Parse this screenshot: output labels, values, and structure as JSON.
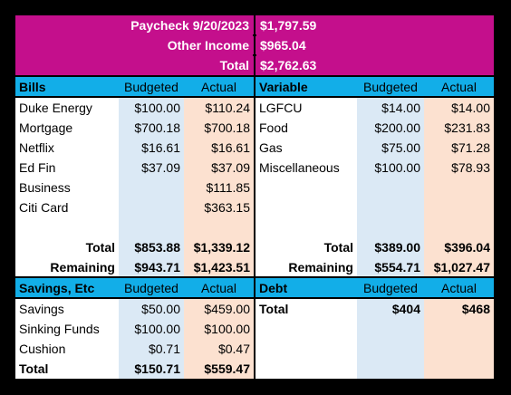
{
  "header": {
    "paycheck_label": "Paycheck  9/20/2023",
    "paycheck_value": "$1,797.59",
    "other_income_label": "Other Income",
    "other_income_value": "$965.04",
    "total_label": "Total",
    "total_value": "$2,762.63"
  },
  "bills": {
    "title": "Bills",
    "col_budgeted": "Budgeted",
    "col_actual": "Actual",
    "rows": [
      {
        "name": "Duke Energy",
        "budgeted": "$100.00",
        "actual": "$110.24"
      },
      {
        "name": "Mortgage",
        "budgeted": "$700.18",
        "actual": "$700.18"
      },
      {
        "name": "Netflix",
        "budgeted": "$16.61",
        "actual": "$16.61"
      },
      {
        "name": "Ed Fin",
        "budgeted": "$37.09",
        "actual": "$37.09"
      },
      {
        "name": "Business",
        "budgeted": "",
        "actual": "$111.85"
      },
      {
        "name": "Citi Card",
        "budgeted": "",
        "actual": "$363.15"
      }
    ],
    "total_label": "Total",
    "total_budgeted": "$853.88",
    "total_actual": "$1,339.12",
    "remaining_label": "Remaining",
    "remaining_budgeted": "$943.71",
    "remaining_actual": "$1,423.51"
  },
  "variable": {
    "title": "Variable",
    "col_budgeted": "Budgeted",
    "col_actual": "Actual",
    "rows": [
      {
        "name": "LGFCU",
        "budgeted": "$14.00",
        "actual": "$14.00"
      },
      {
        "name": "Food",
        "budgeted": "$200.00",
        "actual": "$231.83"
      },
      {
        "name": "Gas",
        "budgeted": "$75.00",
        "actual": "$71.28"
      },
      {
        "name": "Miscellaneous",
        "budgeted": "$100.00",
        "actual": "$78.93"
      }
    ],
    "total_label": "Total",
    "total_budgeted": "$389.00",
    "total_actual": "$396.04",
    "remaining_label": "Remaining",
    "remaining_budgeted": "$554.71",
    "remaining_actual": "$1,027.47"
  },
  "savings": {
    "title": "Savings, Etc",
    "col_budgeted": "Budgeted",
    "col_actual": "Actual",
    "rows": [
      {
        "name": "Savings",
        "budgeted": "$50.00",
        "actual": "$459.00"
      },
      {
        "name": "Sinking Funds",
        "budgeted": "$100.00",
        "actual": "$100.00"
      },
      {
        "name": "Cushion",
        "budgeted": "$0.71",
        "actual": "$0.47"
      }
    ],
    "total_label": "Total",
    "total_budgeted": "$150.71",
    "total_actual": "$559.47"
  },
  "debt": {
    "title": "Debt",
    "col_budgeted": "Budgeted",
    "col_actual": "Actual",
    "total_label": "Total",
    "total_budgeted": "$404",
    "total_actual": "$468"
  },
  "colors": {
    "header_band": "#c40f8c",
    "section_header": "#12aee8",
    "budgeted_column": "#dbe9f5",
    "actual_column": "#fce1d0"
  }
}
